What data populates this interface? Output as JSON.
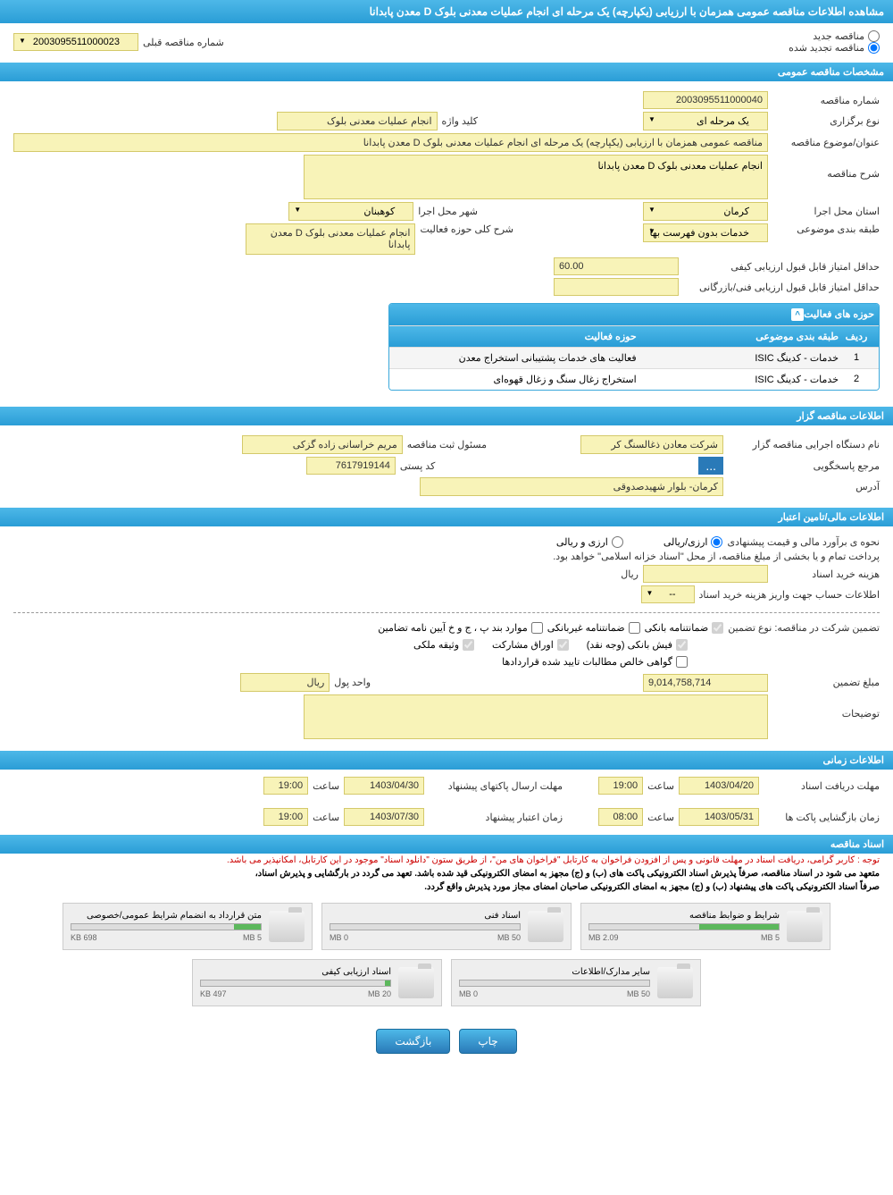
{
  "page_title": "مشاهده اطلاعات مناقصه عمومی همزمان با ارزیابی (یکپارچه) یک مرحله ای انجام عملیات معدنی بلوک D معدن پابدانا",
  "top": {
    "new_tender": "مناقصه جدید",
    "renewed_tender": "مناقصه تجدید شده",
    "prev_num_label": "شماره مناقصه قبلی",
    "prev_num": "2003095511000023"
  },
  "sections": {
    "general": "مشخصات مناقصه عمومی",
    "organizer": "اطلاعات مناقصه گزار",
    "financial": "اطلاعات مالی/تامین اعتبار",
    "timing": "اطلاعات زمانی",
    "documents": "اسناد مناقصه"
  },
  "general": {
    "tender_num_label": "شماره مناقصه",
    "tender_num": "2003095511000040",
    "type_label": "نوع برگزاری",
    "type_value": "یک مرحله ای",
    "keyword_label": "کلید واژه",
    "keyword_value": "انجام عملیات معدنی بلوک",
    "subject_label": "عنوان/موضوع مناقصه",
    "subject_value": "مناقصه عمومی همزمان با ارزیابی (یکپارچه) یک مرحله ای انجام عملیات معدنی بلوک D معدن پابدانا",
    "desc_label": "شرح مناقصه",
    "desc_value": "انجام عملیات معدنی بلوک D معدن پابدانا",
    "province_label": "استان محل اجرا",
    "province_value": "کرمان",
    "city_label": "شهر محل اجرا",
    "city_value": "کوهبنان",
    "category_label": "طبقه بندی موضوعی",
    "category_value": "خدمات بدون فهرست بها",
    "activity_desc_label": "شرح کلی حوزه فعالیت",
    "activity_desc_value": "انجام عملیات معدنی بلوک D معدن پابدانا",
    "min_score_label": "حداقل امتیاز قابل قبول ارزیابی کیفی",
    "min_score_value": "60.00",
    "min_tech_score_label": "حداقل امتیاز قابل قبول ارزیابی فنی/بازرگانی"
  },
  "activity_table": {
    "title": "حوزه های فعالیت",
    "col_num": "ردیف",
    "col_category": "طبقه بندی موضوعی",
    "col_activity": "حوزه فعالیت",
    "rows": [
      {
        "num": "1",
        "category": "خدمات - کدینگ ISIC",
        "activity": "فعالیت های خدمات پشتیبانی استخراج معدن"
      },
      {
        "num": "2",
        "category": "خدمات - کدینگ ISIC",
        "activity": "استخراج زغال سنگ و زغال قهوه‌ای"
      }
    ]
  },
  "organizer": {
    "exec_label": "نام دستگاه اجرایی مناقصه گزار",
    "exec_value": "شرکت معادن ذغالسنگ کر",
    "registrar_label": "مسئول ثبت مناقصه",
    "registrar_value": "مریم خراسانی زاده گزکی",
    "responder_label": "مرجع پاسخگویی",
    "postal_label": "کد پستی",
    "postal_value": "7617919144",
    "address_label": "آدرس",
    "address_value": "کرمان- بلوار شهیدصدوقی"
  },
  "financial": {
    "estimate_label": "نحوه ی برآورد مالی و قیمت پیشنهادی",
    "rial_option": "ارزی/ریالی",
    "both_option": "ارزی و ریالی",
    "payment_note": "پرداخت تمام و یا بخشی از مبلغ مناقصه، از محل \"اسناد خزانه اسلامی\" خواهد بود.",
    "doc_cost_label": "هزینه خرید اسناد",
    "currency": "ریال",
    "account_label": "اطلاعات حساب جهت واریز هزینه خرید اسناد",
    "guarantee_label": "تضمین شرکت در مناقصه:    نوع تضمین",
    "bank_guarantee": "ضمانتنامه بانکی",
    "nonbank_guarantee": "ضمانتنامه غیربانکی",
    "clause_guarantee": "موارد بند پ ، ج و خ آیین نامه تضامین",
    "bank_receipt": "فیش بانکی (وجه نقد)",
    "participation_bonds": "اوراق مشارکت",
    "property_deposit": "وثیقه ملکی",
    "receivables_cert": "گواهی خالص مطالبات تایید شده قراردادها",
    "amount_label": "مبلغ تضمین",
    "amount_value": "9,014,758,714",
    "unit_label": "واحد پول",
    "unit_value": "ریال",
    "notes_label": "توضیحات"
  },
  "timing": {
    "doc_deadline_label": "مهلت دریافت اسناد",
    "doc_deadline_date": "1403/04/20",
    "doc_deadline_time": "19:00",
    "send_deadline_label": "مهلت ارسال پاکتهای پیشنهاد",
    "send_deadline_date": "1403/04/30",
    "send_deadline_time": "19:00",
    "open_date_label": "زمان بازگشایی پاکت ها",
    "open_date": "1403/05/31",
    "open_time": "08:00",
    "validity_label": "زمان اعتبار پیشنهاد",
    "validity_date": "1403/07/30",
    "validity_time": "19:00",
    "time_label": "ساعت"
  },
  "docs_notice": {
    "red": "توجه : کاربر گرامی، دریافت اسناد در مهلت قانونی و پس از افزودن فراخوان به کارتابل \"فراخوان های من\"، از طریق ستون \"دانلود اسناد\" موجود در این کارتابل، امکانپذیر می باشد.",
    "black1": "متعهد می شود در اسناد مناقصه، صرفاً پذیرش اسناد الکترونیکی پاکت های (ب) و (ج) مجهز به امضای الکترونیکی قید شده باشد. تعهد می گردد در بارگشایی و پذیرش اسناد،",
    "black2": "صرفاً اسناد الکترونیکی پاکت های پیشنهاد (ب) و (ج) مجهز به امضای الکترونیکی صاحبان امضای مجاز مورد پذیرش واقع گردد."
  },
  "documents": [
    {
      "title": "شرایط و ضوابط مناقصه",
      "used": "2.09 MB",
      "total": "5 MB",
      "pct": 42
    },
    {
      "title": "اسناد فنی",
      "used": "0 MB",
      "total": "50 MB",
      "pct": 0
    },
    {
      "title": "متن قرارداد به انضمام شرایط عمومی/خصوصی",
      "used": "698 KB",
      "total": "5 MB",
      "pct": 14
    },
    {
      "title": "سایر مدارک/اطلاعات",
      "used": "0 MB",
      "total": "50 MB",
      "pct": 0
    },
    {
      "title": "اسناد ارزیابی کیفی",
      "used": "497 KB",
      "total": "20 MB",
      "pct": 3
    }
  ],
  "buttons": {
    "print": "چاپ",
    "back": "بازگشت"
  }
}
